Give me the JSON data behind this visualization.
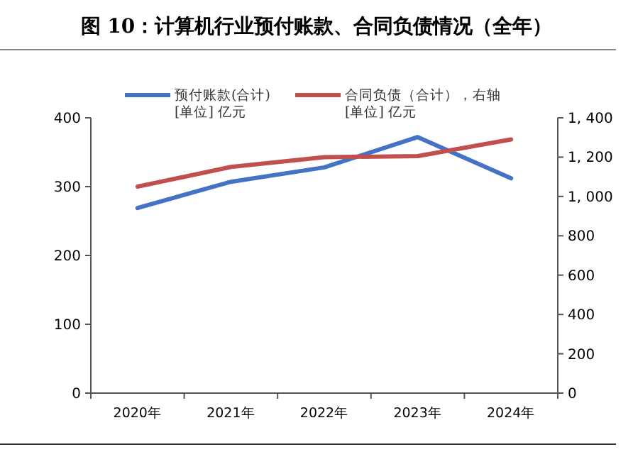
{
  "chart_data": {
    "type": "line",
    "title": "图 10：计算机行业预付账款、合同负债情况（全年）",
    "categories": [
      "2020年",
      "2021年",
      "2022年",
      "2023年",
      "2024年"
    ],
    "series": [
      {
        "name": "预付账款(合计)\n[单位] 亿元",
        "color": "#4472c4",
        "values": [
          269,
          307,
          328,
          372,
          312
        ]
      },
      {
        "name": "合同负债（合计），右轴\n[单位] 亿元",
        "color": "#c0504d",
        "axis": "y2",
        "values": [
          1050,
          1150,
          1200,
          1205,
          1290
        ]
      }
    ],
    "ylim": [
      0,
      400
    ],
    "yticks": [
      0,
      100,
      200,
      300,
      400
    ],
    "y2lim": [
      0,
      1400
    ],
    "y2ticks": [
      {
        "value": 0,
        "label": "0"
      },
      {
        "value": 200,
        "label": "200"
      },
      {
        "value": 400,
        "label": "400"
      },
      {
        "value": 600,
        "label": "600"
      },
      {
        "value": 800,
        "label": "800"
      },
      {
        "value": 1000,
        "label": "1, 000"
      },
      {
        "value": 1200,
        "label": "1, 200"
      },
      {
        "value": 1400,
        "label": "1, 400"
      }
    ],
    "grid": false,
    "legend": "top",
    "marker": "none",
    "line_style": "solid"
  }
}
